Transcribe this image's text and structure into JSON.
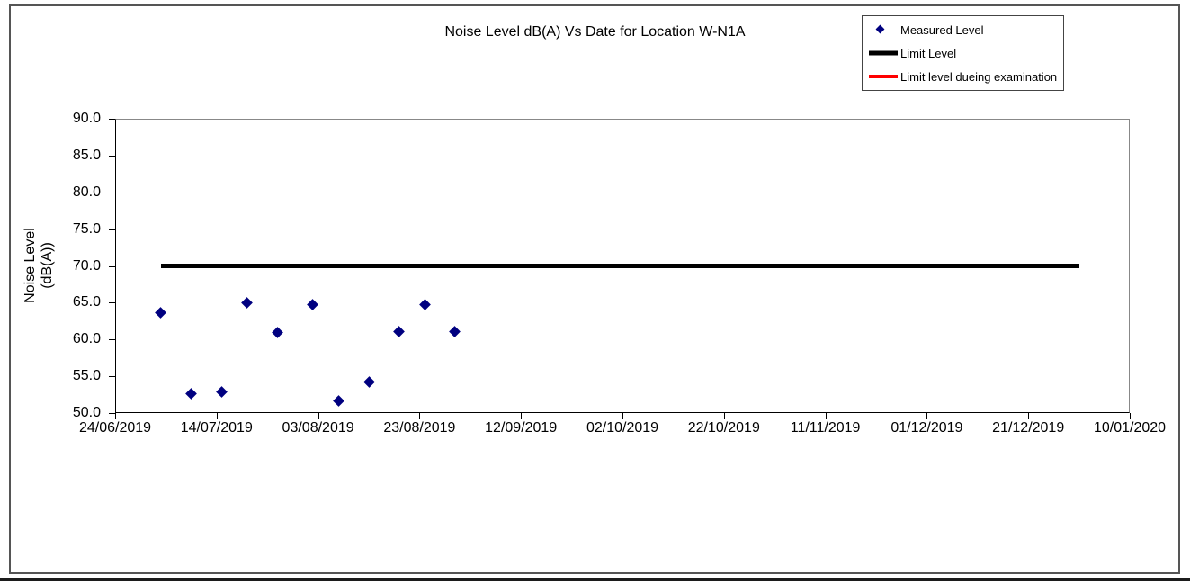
{
  "chart_data": {
    "type": "scatter",
    "title": "Noise Level dB(A) Vs Date for Location W-N1A",
    "y_axis_title_lines": [
      "Noise Level",
      "(dB(A))"
    ],
    "xlabel": "",
    "ylim": [
      50,
      90
    ],
    "y_tick_labels": [
      "50.0",
      "55.0",
      "60.0",
      "65.0",
      "70.0",
      "75.0",
      "80.0",
      "85.0",
      "90.0"
    ],
    "x_axis": {
      "start_date": "24/06/2019",
      "end_date": "10/01/2020",
      "tick_labels": [
        "24/06/2019",
        "14/07/2019",
        "03/08/2019",
        "23/08/2019",
        "12/09/2019",
        "02/10/2019",
        "22/10/2019",
        "11/11/2019",
        "01/12/2019",
        "21/12/2019",
        "10/01/2020"
      ]
    },
    "grid": false,
    "legend": {
      "position": "top-right",
      "entries": [
        {
          "label": "Measured Level",
          "marker": "diamond",
          "color": "#000080"
        },
        {
          "label": "Limit Level",
          "marker": "line",
          "color": "#000000",
          "thickness": 5
        },
        {
          "label": "Limit level dueing examination",
          "marker": "line",
          "color": "#ff0000",
          "thickness": 4
        }
      ]
    },
    "series": [
      {
        "name": "Measured Level",
        "type": "scatter",
        "marker": "diamond",
        "color": "#000080",
        "points": [
          {
            "date": "03/07/2019",
            "value": 63.7
          },
          {
            "date": "09/07/2019",
            "value": 52.6
          },
          {
            "date": "15/07/2019",
            "value": 52.9
          },
          {
            "date": "20/07/2019",
            "value": 65.0
          },
          {
            "date": "26/07/2019",
            "value": 60.9
          },
          {
            "date": "02/08/2019",
            "value": 64.8
          },
          {
            "date": "07/08/2019",
            "value": 51.6
          },
          {
            "date": "13/08/2019",
            "value": 54.2
          },
          {
            "date": "19/08/2019",
            "value": 61.1
          },
          {
            "date": "24/08/2019",
            "value": 64.8
          },
          {
            "date": "30/08/2019",
            "value": 61.1
          }
        ]
      },
      {
        "name": "Limit Level",
        "type": "line",
        "color": "#000000",
        "thickness": 5,
        "points": [
          {
            "date": "03/07/2019",
            "value": 70.0
          },
          {
            "date": "31/12/2019",
            "value": 70.0
          }
        ]
      },
      {
        "name": "Limit level dueing examination",
        "type": "line",
        "color": "#ff0000",
        "thickness": 4,
        "points": []
      }
    ]
  }
}
